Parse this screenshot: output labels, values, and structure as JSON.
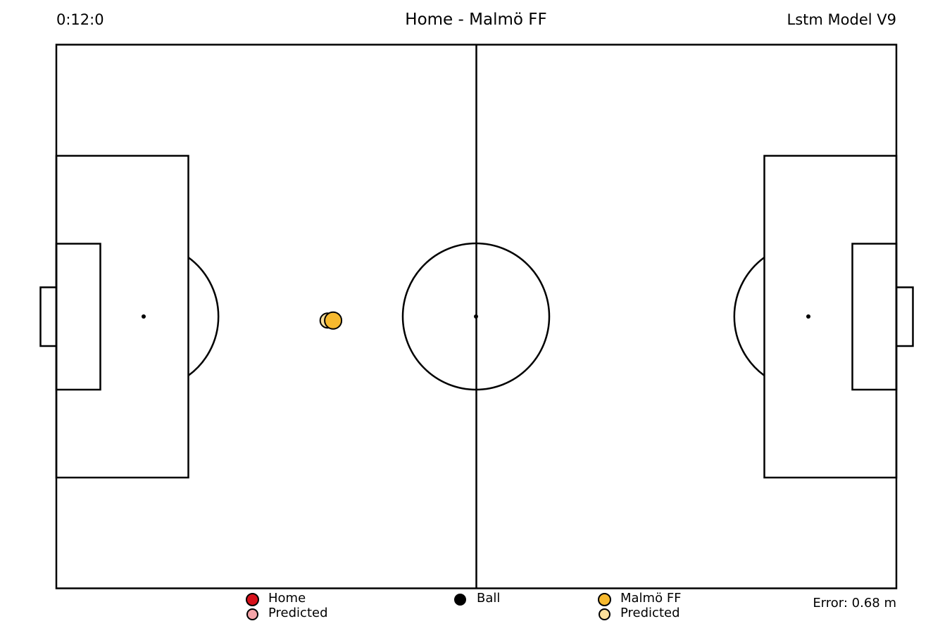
{
  "header": {
    "clock": "0:12:0",
    "title": "Home - Malmö FF",
    "model": "Lstm Model V9"
  },
  "legend": {
    "home": {
      "label": "Home",
      "color": "#d7111b"
    },
    "home_predicted": {
      "label": "Predicted",
      "color": "#f4a4a8"
    },
    "ball": {
      "label": "Ball",
      "color": "#000000"
    },
    "away": {
      "label": "Malmö FF",
      "color": "#f6b92f"
    },
    "away_predicted": {
      "label": "Predicted",
      "color": "#fbdf9b"
    }
  },
  "error": {
    "text": "Error: 0.68 m",
    "value": 0.68,
    "unit": "m"
  },
  "pitch": {
    "length_m": 105,
    "width_m": 68
  },
  "players": [
    {
      "team": "away",
      "kind": "predicted",
      "x_m": 33.9,
      "y_m": 34.5
    },
    {
      "team": "away",
      "kind": "actual",
      "x_m": 34.6,
      "y_m": 34.5
    }
  ]
}
